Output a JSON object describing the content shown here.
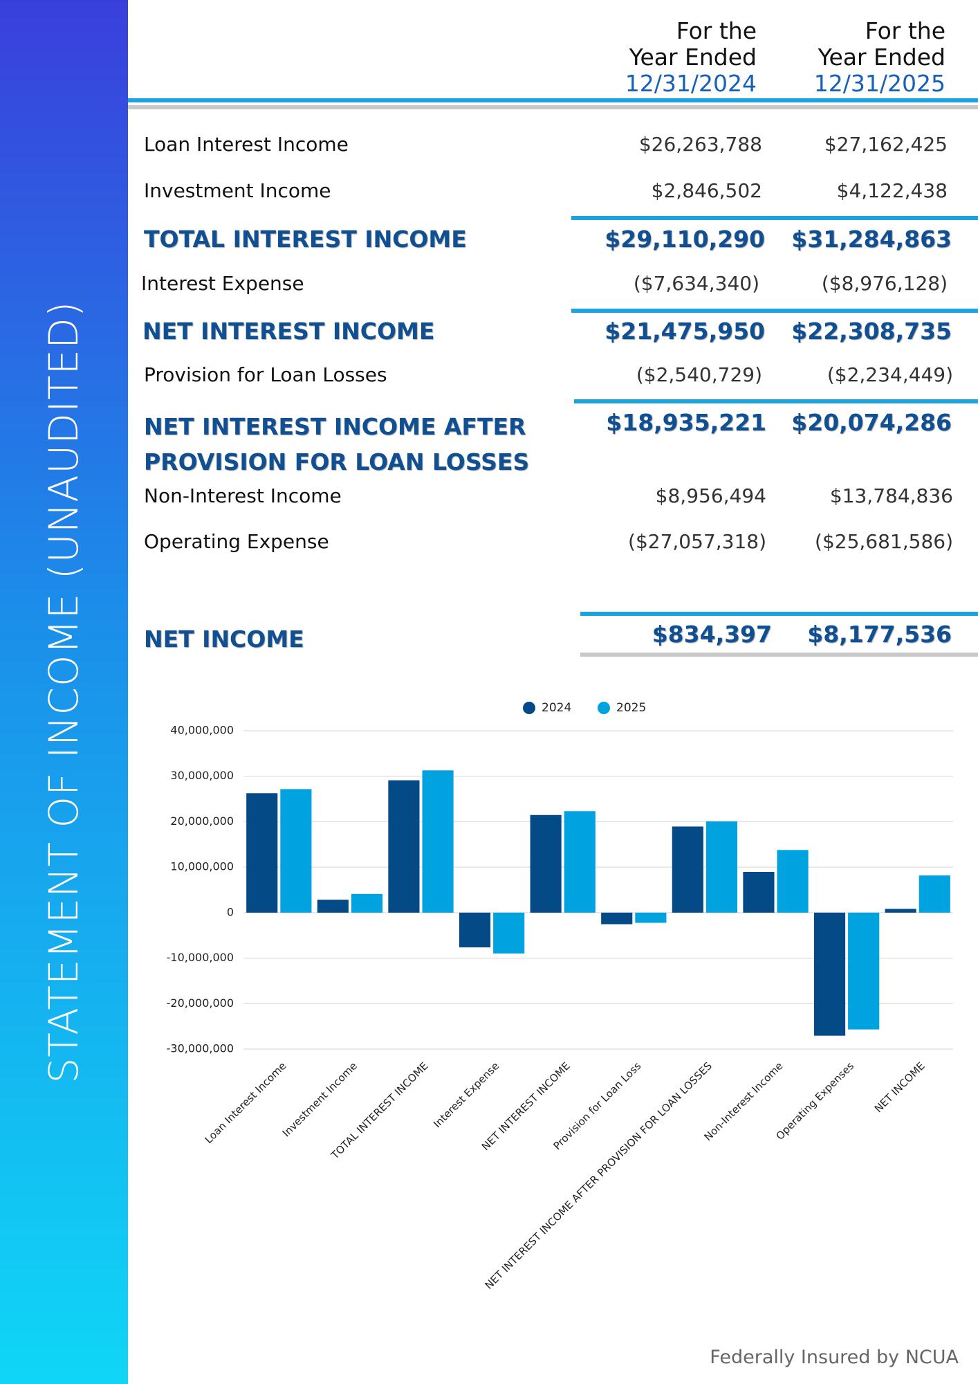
{
  "sidebar_title": "STATEMENT OF INCOME (UNAUDITED)",
  "table": {
    "columns": [
      {
        "line1": "For the",
        "line2": "Year Ended",
        "date": "12/31/2024"
      },
      {
        "line1": "For the",
        "line2": "Year Ended",
        "date": "12/31/2025"
      }
    ],
    "rows": [
      {
        "label": "Loan Interest Income",
        "values": [
          "$26,263,788",
          "$27,162,425"
        ]
      },
      {
        "label": "Investment Income",
        "values": [
          "$2,846,502",
          "$4,122,438"
        ]
      },
      {
        "label": "TOTAL INTEREST INCOME",
        "values": [
          "$29,110,290",
          "$31,284,863"
        ]
      },
      {
        "label": "Interest Expense",
        "values": [
          "($7,634,340)",
          "($8,976,128)"
        ]
      },
      {
        "label": "NET INTEREST INCOME",
        "values": [
          "$21,475,950",
          "$22,308,735"
        ]
      },
      {
        "label": "Provision for Loan Losses",
        "values": [
          "($2,540,729)",
          "($2,234,449)"
        ]
      },
      {
        "label": "NET INTEREST INCOME AFTER PROVISION FOR LOAN LOSSES",
        "values": [
          "$18,935,221",
          "$20,074,286"
        ]
      },
      {
        "label": "Non-Interest Income",
        "values": [
          "$8,956,494",
          "$13,784,836"
        ]
      },
      {
        "label": "Operating Expense",
        "values": [
          "($27,057,318)",
          "($25,681,586)"
        ]
      },
      {
        "label": "NET INCOME",
        "values": [
          "$834,397",
          "$8,177,536"
        ]
      }
    ]
  },
  "chart_data": {
    "type": "bar",
    "categories": [
      "Loan Interest Income",
      "Investment Income",
      "TOTAL INTEREST INCOME",
      "Interest Expense",
      "NET INTEREST INCOME",
      "Provision for Loan Loss",
      "NET INTEREST INCOME AFTER PROVISION FOR LOAN LOSSES",
      "Non-Interest Income",
      "Operating Expenses",
      "NET INCOME"
    ],
    "series": [
      {
        "name": "2024",
        "color": "#034a87",
        "values": [
          26263788,
          2846502,
          29110290,
          -7634340,
          21475950,
          -2540729,
          18935221,
          8956494,
          -27057318,
          834397
        ]
      },
      {
        "name": "2025",
        "color": "#00a3e0",
        "values": [
          27162425,
          4122438,
          31284863,
          -8976128,
          22308735,
          -2234449,
          20074286,
          13784836,
          -25681586,
          8177536
        ]
      }
    ],
    "ylim": [
      -30000000,
      40000000
    ],
    "yticks": [
      {
        "value": 40000000,
        "label": "40,000,000"
      },
      {
        "value": 30000000,
        "label": "30,000,000"
      },
      {
        "value": 20000000,
        "label": "20,000,000"
      },
      {
        "value": 10000000,
        "label": "10,000,000"
      },
      0,
      {
        "value": -10000000,
        "label": "-10,000,000"
      },
      {
        "value": -20000000,
        "label": "-20,000,000"
      },
      {
        "value": -30000000,
        "label": "-30,000,000"
      }
    ],
    "grid": true,
    "legend": "top"
  },
  "footer": "Federally Insured by NCUA"
}
